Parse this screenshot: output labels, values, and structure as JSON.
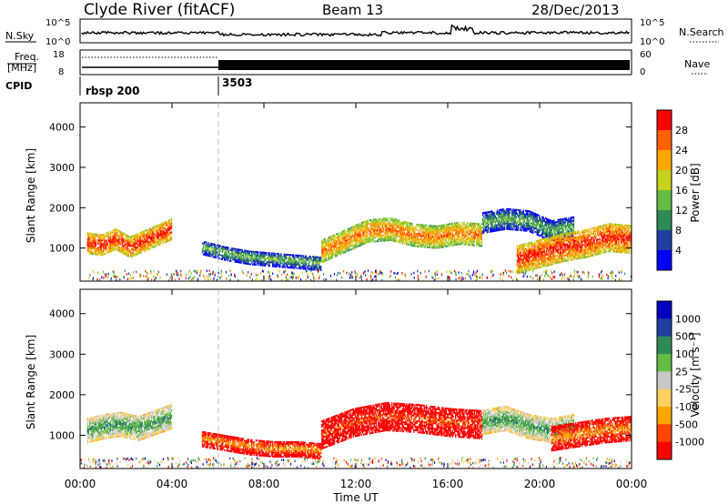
{
  "header": {
    "station": "Clyde River (fitACF)",
    "beam": "Beam 13",
    "date": "28/Dec/2013"
  },
  "status_panels": {
    "nsky_label": "N.Sky",
    "nsearch_label": "N.Search",
    "nsky_ticks": [
      "10^5",
      "10^0"
    ],
    "nsky_right_ticks": [
      "10^5",
      "10^0"
    ],
    "freq_label_1": "Freq.",
    "freq_label_2": "[MHz]",
    "freq_ticks": [
      "18",
      "8"
    ],
    "nave_label": "Nave",
    "nave_ticks": [
      "60",
      "0"
    ],
    "cpid_label": "CPID",
    "cpid_segments": [
      {
        "start_hour": 0,
        "label": "rbsp 200"
      },
      {
        "start_hour": 6,
        "label": "3503"
      }
    ]
  },
  "colors": {
    "power": [
      "#0000ff",
      "#2040a0",
      "#2e8b57",
      "#66bb44",
      "#c8d020",
      "#ffa500",
      "#ff6000",
      "#ff0000"
    ],
    "velocity": [
      "#ff0000",
      "#ff4500",
      "#ffa500",
      "#ffd060",
      "#c8c8c8",
      "#66bb44",
      "#2e8b57",
      "#2040a0",
      "#0000c0"
    ]
  },
  "chart_data": [
    {
      "type": "heatmap",
      "name": "power",
      "ylabel": "Slant Range [km]",
      "xlabel": "Time UT",
      "xlim": [
        0,
        24
      ],
      "ylim": [
        180,
        4600
      ],
      "x_ticks": [
        "00:00",
        "04:00",
        "08:00",
        "12:00",
        "16:00",
        "20:00",
        "00:00"
      ],
      "y_ticks": [
        1000,
        2000,
        3000,
        4000
      ],
      "colorbar": {
        "label": "Power [dB]",
        "ticks": [
          "4",
          "8",
          "12",
          "16",
          "20",
          "24",
          "28"
        ]
      },
      "echo_bands": [
        {
          "t_start": 0.3,
          "t_end": 4.0,
          "center_km": [
            1100,
            1050,
            1200,
            1000,
            1150,
            1300,
            1450
          ],
          "width_km": 500,
          "level": 7
        },
        {
          "t_start": 5.3,
          "t_end": 10.5,
          "center_km": [
            1000,
            850,
            750,
            700,
            650,
            600
          ],
          "width_km": 350,
          "level": 3
        },
        {
          "t_start": 10.5,
          "t_end": 17.5,
          "center_km": [
            900,
            1150,
            1400,
            1450,
            1300,
            1250,
            1350,
            1300
          ],
          "width_km": 550,
          "level": 6
        },
        {
          "t_start": 17.5,
          "t_end": 21.5,
          "center_km": [
            1600,
            1700,
            1650,
            1400,
            1500
          ],
          "width_km": 500,
          "level": 3
        },
        {
          "t_start": 19.0,
          "t_end": 24.0,
          "center_km": [
            700,
            850,
            1000,
            1100,
            1250,
            1200
          ],
          "width_km": 700,
          "level": 7
        }
      ]
    },
    {
      "type": "heatmap",
      "name": "velocity",
      "ylabel": "Slant Range [km]",
      "xlabel": "Time UT",
      "xlim": [
        0,
        24
      ],
      "ylim": [
        180,
        4600
      ],
      "x_ticks": [
        "00:00",
        "04:00",
        "08:00",
        "12:00",
        "16:00",
        "20:00",
        "00:00"
      ],
      "y_ticks": [
        1000,
        2000,
        3000,
        4000
      ],
      "colorbar": {
        "label": "Velocity [m s⁻¹]",
        "ticks": [
          "1000",
          "500",
          "100",
          "25",
          "-25",
          "-100",
          "-500",
          "-1000"
        ]
      },
      "echo_bands": [
        {
          "t_start": 0.3,
          "t_end": 4.0,
          "center_km": [
            1100,
            1200,
            1250,
            1150,
            1300,
            1450
          ],
          "width_km": 600,
          "level": 6
        },
        {
          "t_start": 5.3,
          "t_end": 10.5,
          "center_km": [
            900,
            800,
            700,
            650,
            650,
            600
          ],
          "width_km": 400,
          "level": 2
        },
        {
          "t_start": 10.5,
          "t_end": 17.5,
          "center_km": [
            1000,
            1300,
            1450,
            1400,
            1300,
            1250
          ],
          "width_km": 700,
          "level": 1
        },
        {
          "t_start": 17.5,
          "t_end": 21.5,
          "center_km": [
            1300,
            1400,
            1200,
            1100,
            1200
          ],
          "width_km": 600,
          "level": 6
        },
        {
          "t_start": 20.5,
          "t_end": 24.0,
          "center_km": [
            900,
            1000,
            1100,
            1150
          ],
          "width_km": 600,
          "level": 2
        }
      ]
    }
  ]
}
